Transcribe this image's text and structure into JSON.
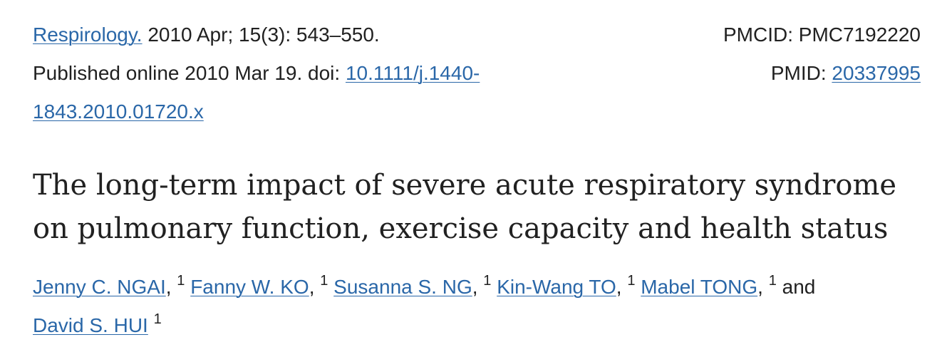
{
  "citation": {
    "journal": "Respirology.",
    "issue": " 2010 Apr; 15(3): 543–550.",
    "published_prefix": "Published online 2010 Mar 19. doi: ",
    "doi": "10.1111/j.1440-1843.2010.01720.x"
  },
  "ids": {
    "pmcid_label": "PMCID: ",
    "pmcid": "PMC7192220",
    "pmid_label": "PMID: ",
    "pmid": "20337995"
  },
  "article_title": "The long-term impact of severe acute respiratory syndrome on pulmonary function, exercise capacity and health status",
  "authors": [
    {
      "name": "Jenny C. NGAI",
      "sep": ",",
      "aff": "1"
    },
    {
      "name": "Fanny W. KO",
      "sep": ",",
      "aff": "1"
    },
    {
      "name": "Susanna S. NG",
      "sep": ",",
      "aff": "1"
    },
    {
      "name": "Kin-Wang TO",
      "sep": ",",
      "aff": "1"
    },
    {
      "name": "Mabel TONG",
      "sep": ",",
      "aff": "1"
    },
    {
      "name": "David S. HUI",
      "sep": "",
      "aff": "1"
    }
  ],
  "authors_conjunction": "and"
}
